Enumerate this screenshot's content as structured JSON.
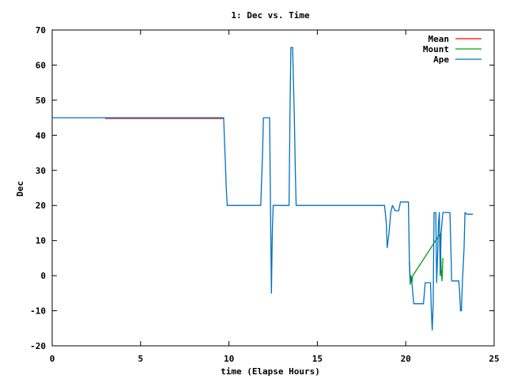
{
  "chart_data": {
    "type": "line",
    "title": "1: Dec vs. Time",
    "xlabel": "time (Elapse Hours)",
    "ylabel": "Dec",
    "xlim": [
      0,
      25
    ],
    "ylim": [
      -20,
      70
    ],
    "xticks": [
      0,
      5,
      10,
      15,
      20,
      25
    ],
    "yticks": [
      -20,
      -10,
      0,
      10,
      20,
      30,
      40,
      50,
      60,
      70
    ],
    "grid": false,
    "legend_position": "top-right",
    "series": [
      {
        "name": "Mean",
        "color": "#ff0000",
        "x": [
          3.0,
          9.7
        ],
        "y": [
          44.8,
          44.8
        ]
      },
      {
        "name": "Mount",
        "color": "#00a000",
        "x": [
          20.2,
          20.25,
          20.3,
          20.35,
          20.4,
          21.95,
          22.0,
          22.05,
          22.1
        ],
        "y": [
          4.0,
          -2.5,
          -1.0,
          -2.0,
          0.0,
          12.0,
          2.0,
          -1.5,
          5.0
        ]
      },
      {
        "name": "Ape",
        "color": "#0070c0",
        "x": [
          0,
          9.7,
          9.75,
          9.8,
          9.85,
          9.9,
          11.8,
          11.9,
          11.95,
          12.0,
          12.05,
          12.3,
          12.35,
          12.4,
          12.45,
          12.5,
          13.4,
          13.45,
          13.5,
          13.55,
          13.6,
          13.7,
          13.75,
          13.8,
          13.85,
          13.95,
          18.8,
          18.9,
          18.95,
          19.05,
          19.15,
          19.25,
          19.4,
          19.6,
          19.7,
          19.8,
          20.0,
          20.15,
          20.2,
          20.25,
          20.3,
          20.35,
          20.45,
          20.55,
          20.65,
          21.0,
          21.1,
          21.4,
          21.45,
          21.5,
          21.55,
          21.6,
          21.7,
          21.75,
          21.8,
          21.85,
          21.9,
          21.95,
          22.0,
          22.05,
          22.1,
          22.15,
          22.2,
          22.25,
          22.5,
          22.6,
          22.65,
          22.7,
          23.0,
          23.05,
          23.1,
          23.15,
          23.2,
          23.3,
          23.35,
          23.45,
          23.5,
          23.55,
          23.8
        ],
        "y": [
          45.0,
          45.0,
          38.0,
          32.0,
          25.0,
          20.0,
          20.0,
          35.0,
          45.0,
          45.0,
          45.0,
          45.0,
          20.0,
          -5.0,
          12.0,
          20.0,
          20.0,
          45.0,
          65.0,
          65.0,
          65.0,
          45.0,
          30.0,
          20.0,
          20.0,
          20.0,
          20.0,
          15.0,
          8.0,
          12.0,
          18.0,
          20.0,
          18.5,
          18.5,
          21.0,
          21.0,
          21.0,
          21.0,
          5.0,
          -1.0,
          0.0,
          -2.0,
          -8.0,
          -8.0,
          -8.0,
          -8.0,
          -2.0,
          -2.0,
          -10.0,
          -15.5,
          -8.0,
          18.0,
          18.0,
          -2.0,
          5.0,
          15.0,
          18.0,
          0.0,
          12.0,
          15.0,
          18.0,
          18.0,
          18.0,
          18.0,
          18.0,
          -1.5,
          -1.5,
          -1.5,
          -1.5,
          -5.0,
          -10.0,
          -10.0,
          -2.0,
          8.0,
          18.0,
          17.5,
          17.5,
          17.5,
          17.5
        ]
      }
    ]
  }
}
